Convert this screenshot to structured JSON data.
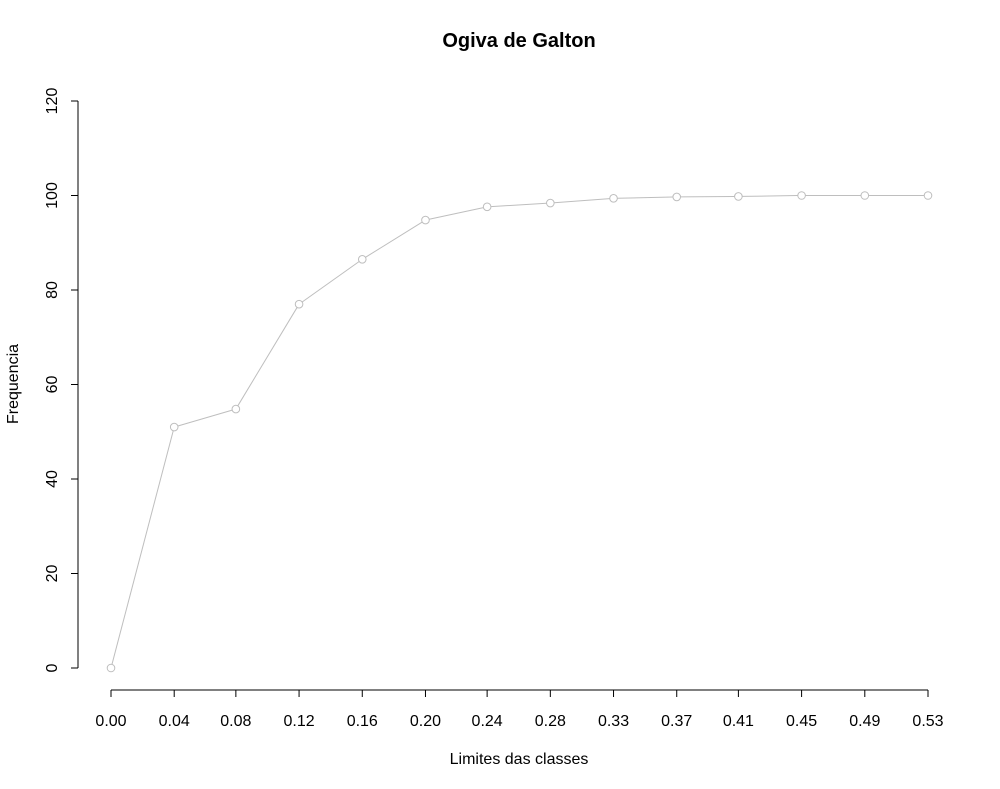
{
  "chart_data": {
    "type": "line",
    "title": "Ogiva de Galton",
    "xlabel": "Limites das classes",
    "ylabel": "Frequencia",
    "x_tick_labels": [
      "0.00",
      "0.04",
      "0.08",
      "0.12",
      "0.16",
      "0.20",
      "0.24",
      "0.28",
      "0.33",
      "0.37",
      "0.41",
      "0.45",
      "0.49",
      "0.53"
    ],
    "y_ticks": [
      0,
      20,
      40,
      60,
      80,
      100,
      120
    ],
    "ylim": [
      0,
      120
    ],
    "xlim": [
      0,
      0.53
    ],
    "series": [
      {
        "x": [
          0.0,
          0.041,
          0.081,
          0.122,
          0.163,
          0.204,
          0.244,
          0.285,
          0.326,
          0.367,
          0.407,
          0.448,
          0.489,
          0.53
        ],
        "y": [
          0,
          51,
          54.8,
          77,
          86.5,
          94.8,
          97.6,
          98.4,
          99.4,
          99.7,
          99.8,
          100,
          100,
          100
        ]
      }
    ],
    "line_color": "#bebebe",
    "grid": false
  }
}
